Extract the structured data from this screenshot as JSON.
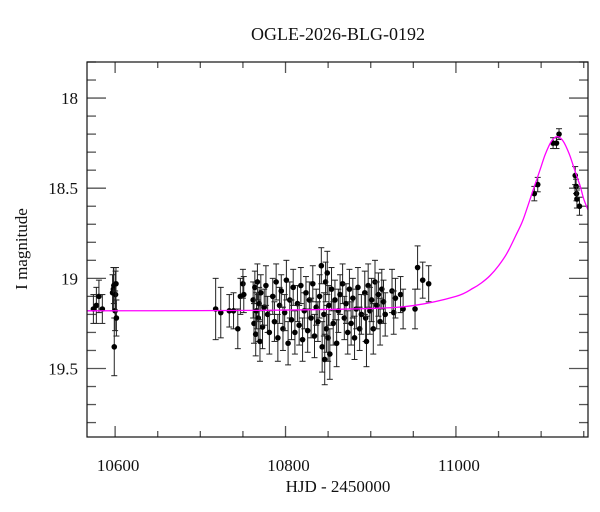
{
  "chart_data": {
    "type": "scatter",
    "title": "OGLE-2026-BLG-0192",
    "xlabel": "HJD - 2450000",
    "ylabel": "I magnitude",
    "xlim": [
      10567,
      11155
    ],
    "ylim": [
      17.8,
      19.88
    ],
    "y_inverted": true,
    "grid": false,
    "x_ticks": [
      10600,
      10800,
      11000
    ],
    "x_minor_step": 50,
    "y_ticks": [
      18,
      18.5,
      19,
      19.5
    ],
    "y_tick_labels": [
      "18",
      "18.5",
      "19",
      "19.5"
    ],
    "y_minor_step": 0.1,
    "colors": {
      "points": "#000000",
      "errorbars": "#222222",
      "model": "#ff00ff"
    },
    "points_columns": [
      "hjd",
      "mag",
      "err"
    ],
    "points": [
      [
        10574.5,
        19.17,
        0.08
      ],
      [
        10578,
        19.15,
        0.1
      ],
      [
        10581,
        19.1,
        0.09
      ],
      [
        10585,
        19.17,
        0.08
      ],
      [
        10597,
        19.08,
        0.1
      ],
      [
        10598,
        19.06,
        0.12
      ],
      [
        10598.5,
        19.04,
        0.1
      ],
      [
        10599,
        19.38,
        0.16
      ],
      [
        10600,
        19.18,
        0.11
      ],
      [
        10600.5,
        19.09,
        0.13
      ],
      [
        10601,
        19.03,
        0.09
      ],
      [
        10601.5,
        19.22,
        0.1
      ],
      [
        10718,
        19.17,
        0.17
      ],
      [
        10724,
        19.19,
        0.14
      ],
      [
        10734,
        19.18,
        0.09
      ],
      [
        10739,
        19.18,
        0.1
      ],
      [
        10744,
        19.28,
        0.11
      ],
      [
        10747,
        19.1,
        0.1
      ],
      [
        10750,
        19.03,
        0.08
      ],
      [
        10751,
        19.09,
        0.1
      ],
      [
        10762,
        19.12,
        0.1
      ],
      [
        10763,
        19.25,
        0.11
      ],
      [
        10764,
        19.05,
        0.09
      ],
      [
        10765,
        19.31,
        0.12
      ],
      [
        10766,
        19.18,
        0.1
      ],
      [
        10767,
        19.02,
        0.1
      ],
      [
        10768,
        19.22,
        0.13
      ],
      [
        10769,
        19.14,
        0.09
      ],
      [
        10770,
        19.35,
        0.11
      ],
      [
        10771,
        19.08,
        0.1
      ],
      [
        10773,
        19.27,
        0.12
      ],
      [
        10775,
        19.16,
        0.1
      ],
      [
        10777,
        19.04,
        0.11
      ],
      [
        10779,
        19.2,
        0.1
      ],
      [
        10781,
        19.3,
        0.12
      ],
      [
        10785,
        19.1,
        0.1
      ],
      [
        10787,
        19.24,
        0.11
      ],
      [
        10789,
        19.02,
        0.1
      ],
      [
        10791,
        19.33,
        0.13
      ],
      [
        10793,
        19.15,
        0.1
      ],
      [
        10795,
        19.07,
        0.09
      ],
      [
        10797,
        19.28,
        0.12
      ],
      [
        10799,
        19.19,
        0.1
      ],
      [
        10801,
        19.01,
        0.11
      ],
      [
        10803,
        19.36,
        0.12
      ],
      [
        10805,
        19.12,
        0.1
      ],
      [
        10807,
        19.23,
        0.11
      ],
      [
        10809,
        19.05,
        0.1
      ],
      [
        10811,
        19.3,
        0.12
      ],
      [
        10814,
        19.14,
        0.1
      ],
      [
        10816,
        19.26,
        0.11
      ],
      [
        10818,
        19.04,
        0.1
      ],
      [
        10820,
        19.34,
        0.12
      ],
      [
        10822,
        19.18,
        0.1
      ],
      [
        10824,
        19.08,
        0.09
      ],
      [
        10826,
        19.29,
        0.12
      ],
      [
        10828,
        19.12,
        0.1
      ],
      [
        10830,
        19.22,
        0.11
      ],
      [
        10832,
        19.03,
        0.1
      ],
      [
        10834,
        19.32,
        0.12
      ],
      [
        10836,
        19.16,
        0.1
      ],
      [
        10838,
        19.24,
        0.11
      ],
      [
        10840,
        19.1,
        0.12
      ],
      [
        10842,
        18.93,
        0.1
      ],
      [
        10843,
        19.38,
        0.14
      ],
      [
        10845,
        19.2,
        0.12
      ],
      [
        10846,
        19.45,
        0.14
      ],
      [
        10847,
        19.02,
        0.11
      ],
      [
        10848,
        19.28,
        0.13
      ],
      [
        10849,
        18.97,
        0.12
      ],
      [
        10850,
        19.33,
        0.13
      ],
      [
        10851,
        19.15,
        0.11
      ],
      [
        10852,
        19.42,
        0.14
      ],
      [
        10854,
        19.06,
        0.12
      ],
      [
        10856,
        19.25,
        0.12
      ],
      [
        10858,
        19.12,
        0.11
      ],
      [
        10860,
        19.36,
        0.13
      ],
      [
        10862,
        19.18,
        0.12
      ],
      [
        10864,
        19.09,
        0.11
      ],
      [
        10867,
        19.03,
        0.11
      ],
      [
        10869,
        19.22,
        0.12
      ],
      [
        10871,
        19.14,
        0.11
      ],
      [
        10873,
        19.3,
        0.12
      ],
      [
        10875,
        19.06,
        0.11
      ],
      [
        10877,
        19.25,
        0.12
      ],
      [
        10879,
        19.11,
        0.11
      ],
      [
        10881,
        19.33,
        0.12
      ],
      [
        10883,
        19.17,
        0.11
      ],
      [
        10885,
        19.05,
        0.11
      ],
      [
        10887,
        19.28,
        0.12
      ],
      [
        10889,
        19.2,
        0.11
      ],
      [
        10893,
        19.08,
        0.12
      ],
      [
        10894,
        19.22,
        0.13
      ],
      [
        10895,
        19.35,
        0.14
      ],
      [
        10897,
        19.04,
        0.12
      ],
      [
        10899,
        19.18,
        0.13
      ],
      [
        10901,
        19.12,
        0.12
      ],
      [
        10903,
        19.28,
        0.14
      ],
      [
        10905,
        19.02,
        0.12
      ],
      [
        10907,
        19.15,
        0.13
      ],
      [
        10909,
        19.09,
        0.12
      ],
      [
        10911,
        19.24,
        0.13
      ],
      [
        10913,
        19.06,
        0.11
      ],
      [
        10915,
        19.13,
        0.12
      ],
      [
        10917,
        19.2,
        0.12
      ],
      [
        10925,
        19.07,
        0.12
      ],
      [
        10927,
        19.19,
        0.12
      ],
      [
        10929,
        19.11,
        0.11
      ],
      [
        10935,
        19.09,
        0.1
      ],
      [
        10938,
        19.17,
        0.11
      ],
      [
        10952,
        19.17,
        0.11
      ],
      [
        10955,
        18.94,
        0.12
      ],
      [
        10961,
        19.01,
        0.1
      ],
      [
        10968,
        19.03,
        0.1
      ],
      [
        11092,
        18.53,
        0.04
      ],
      [
        11096,
        18.48,
        0.04
      ],
      [
        11114,
        18.25,
        0.03
      ],
      [
        11118,
        18.25,
        0.03
      ],
      [
        11121,
        18.2,
        0.03
      ],
      [
        11140,
        18.43,
        0.05
      ],
      [
        11141,
        18.49,
        0.04
      ],
      [
        11141.5,
        18.53,
        0.04
      ],
      [
        11142,
        18.56,
        0.05
      ],
      [
        11145,
        18.6,
        0.05
      ]
    ],
    "model": {
      "name": "",
      "x": [
        10567,
        10700,
        10800,
        10900,
        10950,
        11000,
        11020,
        11030,
        11040,
        11050,
        11060,
        11070,
        11078,
        11085,
        11092,
        11095,
        11100,
        11105,
        11112,
        11119,
        11126,
        11133,
        11138,
        11143,
        11146,
        11150,
        11155
      ],
      "y": [
        19.18,
        19.179,
        19.176,
        19.167,
        19.151,
        19.1,
        19.055,
        19.025,
        18.985,
        18.93,
        18.86,
        18.765,
        18.685,
        18.59,
        18.49,
        18.45,
        18.38,
        18.31,
        18.24,
        18.214,
        18.24,
        18.31,
        18.38,
        18.45,
        18.49,
        18.56,
        18.62
      ]
    }
  }
}
